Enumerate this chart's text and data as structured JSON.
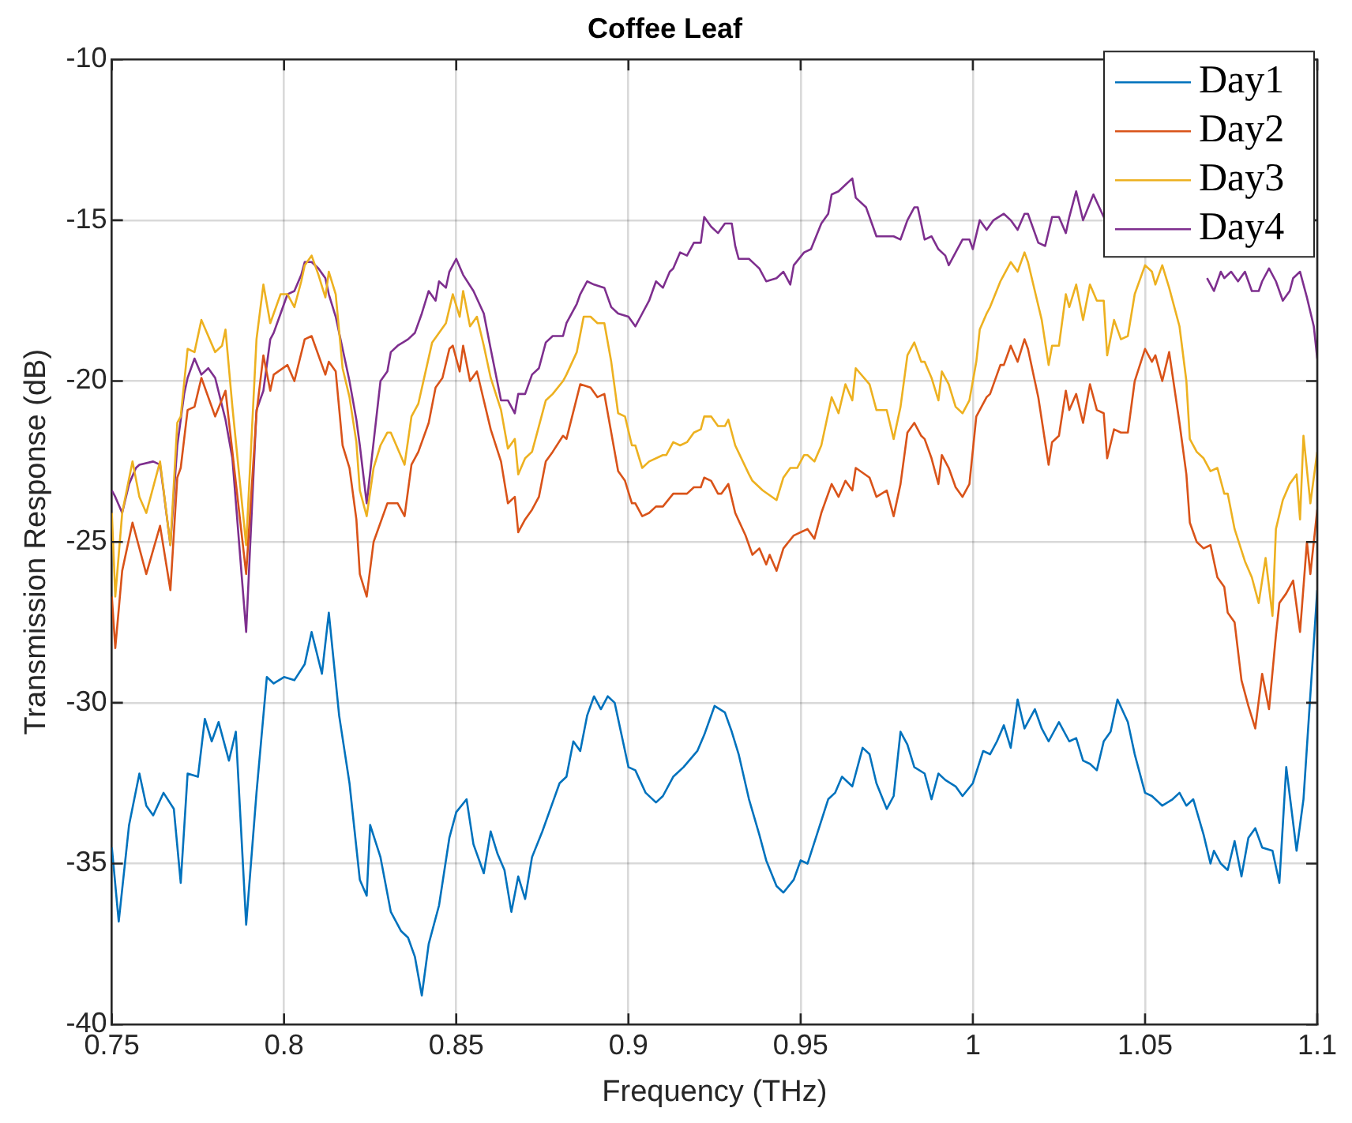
{
  "chart_data": {
    "type": "line",
    "title": "Coffee Leaf",
    "xlabel": "Frequency (THz)",
    "ylabel": "Transmission Response (dB)",
    "xlim": [
      0.75,
      1.1
    ],
    "xticks": [
      0.75,
      0.8,
      0.85,
      0.9,
      0.95,
      1,
      1.05,
      1.1
    ],
    "ylim": [
      -40,
      -10
    ],
    "yticks": [
      -40,
      -35,
      -30,
      -25,
      -20,
      -15,
      -10
    ],
    "grid": true,
    "legend": "top right",
    "marker": "none",
    "line_style": "solid",
    "series": [
      {
        "name": "Day1",
        "color": "#0072bd",
        "x": [
          0.75,
          0.752,
          0.755,
          0.758,
          0.76,
          0.762,
          0.765,
          0.768,
          0.77,
          0.772,
          0.775,
          0.777,
          0.779,
          0.781,
          0.784,
          0.786,
          0.789,
          0.792,
          0.795,
          0.797,
          0.8,
          0.803,
          0.806,
          0.808,
          0.811,
          0.813,
          0.816,
          0.819,
          0.822,
          0.824,
          0.825,
          0.828,
          0.831,
          0.834,
          0.836,
          0.838,
          0.84,
          0.842,
          0.845,
          0.848,
          0.85,
          0.853,
          0.855,
          0.858,
          0.86,
          0.862,
          0.864,
          0.866,
          0.868,
          0.87,
          0.872,
          0.875,
          0.878,
          0.88,
          0.882,
          0.884,
          0.886,
          0.888,
          0.89,
          0.892,
          0.894,
          0.896,
          0.9,
          0.902,
          0.905,
          0.908,
          0.91,
          0.913,
          0.916,
          0.92,
          0.922,
          0.925,
          0.928,
          0.93,
          0.932,
          0.935,
          0.938,
          0.94,
          0.943,
          0.945,
          0.948,
          0.95,
          0.952,
          0.955,
          0.958,
          0.96,
          0.962,
          0.965,
          0.968,
          0.97,
          0.972,
          0.975,
          0.977,
          0.979,
          0.981,
          0.983,
          0.986,
          0.988,
          0.99,
          0.992,
          0.995,
          0.997,
          1,
          1.003,
          1.005,
          1.007,
          1.009,
          1.011,
          1.013,
          1.015,
          1.018,
          1.02,
          1.022,
          1.025,
          1.028,
          1.03,
          1.032,
          1.034,
          1.036,
          1.038,
          1.04,
          1.042,
          1.045,
          1.047,
          1.05,
          1.052,
          1.055,
          1.058,
          1.06,
          1.062,
          1.064,
          1.067,
          1.069,
          1.07,
          1.072,
          1.074,
          1.076,
          1.078,
          1.08,
          1.082,
          1.084,
          1.087,
          1.089,
          1.091,
          1.094,
          1.096,
          1.1
        ],
        "values": [
          -34.5,
          -36.8,
          -33.8,
          -32.2,
          -33.2,
          -33.5,
          -32.8,
          -33.3,
          -35.6,
          -32.2,
          -32.3,
          -30.5,
          -31.2,
          -30.6,
          -31.8,
          -30.9,
          -36.9,
          -32.8,
          -29.2,
          -29.4,
          -29.2,
          -29.3,
          -28.8,
          -27.8,
          -29.1,
          -27.2,
          -30.4,
          -32.5,
          -35.5,
          -36,
          -33.8,
          -34.8,
          -36.5,
          -37.1,
          -37.3,
          -37.9,
          -39.1,
          -37.5,
          -36.3,
          -34.2,
          -33.4,
          -33,
          -34.4,
          -35.3,
          -34,
          -34.7,
          -35.2,
          -36.5,
          -35.4,
          -36.1,
          -34.8,
          -34,
          -33.1,
          -32.5,
          -32.3,
          -31.2,
          -31.5,
          -30.4,
          -29.8,
          -30.2,
          -29.8,
          -30,
          -32,
          -32.1,
          -32.8,
          -33.1,
          -32.9,
          -32.3,
          -32,
          -31.5,
          -31,
          -30.1,
          -30.3,
          -30.9,
          -31.6,
          -33,
          -34.1,
          -34.9,
          -35.7,
          -35.9,
          -35.5,
          -34.9,
          -35,
          -34,
          -33,
          -32.8,
          -32.3,
          -32.6,
          -31.4,
          -31.6,
          -32.5,
          -33.3,
          -32.9,
          -30.9,
          -31.3,
          -32,
          -32.2,
          -33,
          -32.2,
          -32.4,
          -32.6,
          -32.9,
          -32.5,
          -31.5,
          -31.6,
          -31.2,
          -30.7,
          -31.4,
          -29.9,
          -30.8,
          -30.2,
          -30.8,
          -31.2,
          -30.6,
          -31.2,
          -31.1,
          -31.8,
          -31.9,
          -32.1,
          -31.2,
          -30.9,
          -29.9,
          -30.6,
          -31.6,
          -32.8,
          -32.9,
          -33.2,
          -33,
          -32.8,
          -33.2,
          -33,
          -34.1,
          -35,
          -34.6,
          -35,
          -35.2,
          -34.3,
          -35.4,
          -34.2,
          -33.9,
          -34.5,
          -34.6,
          -35.6,
          -32,
          -34.6,
          -33,
          -26.5
        ]
      },
      {
        "name": "Day2",
        "color": "#d95319",
        "x": [
          0.75,
          0.751,
          0.753,
          0.756,
          0.76,
          0.764,
          0.767,
          0.769,
          0.77,
          0.772,
          0.774,
          0.776,
          0.78,
          0.783,
          0.785,
          0.789,
          0.792,
          0.794,
          0.796,
          0.797,
          0.801,
          0.803,
          0.806,
          0.808,
          0.812,
          0.813,
          0.815,
          0.817,
          0.819,
          0.821,
          0.822,
          0.824,
          0.826,
          0.83,
          0.833,
          0.835,
          0.837,
          0.839,
          0.842,
          0.844,
          0.846,
          0.848,
          0.849,
          0.851,
          0.852,
          0.854,
          0.856,
          0.858,
          0.86,
          0.863,
          0.865,
          0.867,
          0.868,
          0.87,
          0.872,
          0.874,
          0.876,
          0.878,
          0.881,
          0.882,
          0.886,
          0.889,
          0.891,
          0.893,
          0.897,
          0.899,
          0.901,
          0.902,
          0.904,
          0.906,
          0.908,
          0.91,
          0.913,
          0.917,
          0.919,
          0.921,
          0.922,
          0.924,
          0.926,
          0.927,
          0.929,
          0.931,
          0.934,
          0.936,
          0.938,
          0.94,
          0.941,
          0.943,
          0.945,
          0.948,
          0.952,
          0.954,
          0.956,
          0.959,
          0.961,
          0.963,
          0.965,
          0.966,
          0.97,
          0.972,
          0.975,
          0.977,
          0.979,
          0.981,
          0.983,
          0.985,
          0.986,
          0.988,
          0.99,
          0.991,
          0.993,
          0.995,
          0.997,
          0.999,
          1.001,
          1.004,
          1.005,
          1.008,
          1.009,
          1.011,
          1.013,
          1.015,
          1.016,
          1.019,
          1.022,
          1.023,
          1.025,
          1.027,
          1.028,
          1.03,
          1.032,
          1.034,
          1.036,
          1.038,
          1.039,
          1.041,
          1.043,
          1.045,
          1.047,
          1.05,
          1.052,
          1.053,
          1.055,
          1.057,
          1.06,
          1.062,
          1.063,
          1.065,
          1.067,
          1.069,
          1.071,
          1.073,
          1.074,
          1.076,
          1.078,
          1.08,
          1.082,
          1.084,
          1.086,
          1.088,
          1.089,
          1.091,
          1.093,
          1.095,
          1.097,
          1.098,
          1.1
        ],
        "values": [
          -26.7,
          -28.3,
          -25.9,
          -24.4,
          -26,
          -24.5,
          -26.5,
          -23,
          -22.7,
          -20.9,
          -20.8,
          -19.9,
          -21.1,
          -20.3,
          -22.2,
          -26,
          -21,
          -19.2,
          -20.3,
          -19.8,
          -19.5,
          -20,
          -18.7,
          -18.6,
          -19.8,
          -19.4,
          -19.7,
          -22,
          -22.7,
          -24.3,
          -26,
          -26.7,
          -25,
          -23.8,
          -23.8,
          -24.2,
          -22.6,
          -22.2,
          -21.3,
          -20.2,
          -19.9,
          -19,
          -18.9,
          -19.7,
          -18.9,
          -20,
          -19.7,
          -20.6,
          -21.5,
          -22.5,
          -23.8,
          -23.6,
          -24.7,
          -24.3,
          -24,
          -23.6,
          -22.5,
          -22.2,
          -21.7,
          -21.8,
          -20.1,
          -20.2,
          -20.5,
          -20.4,
          -22.8,
          -23.1,
          -23.8,
          -23.8,
          -24.2,
          -24.1,
          -23.9,
          -23.9,
          -23.5,
          -23.5,
          -23.3,
          -23.3,
          -23,
          -23.1,
          -23.5,
          -23.5,
          -23.2,
          -24.1,
          -24.8,
          -25.4,
          -25.2,
          -25.7,
          -25.4,
          -25.9,
          -25.2,
          -24.8,
          -24.6,
          -24.9,
          -24.1,
          -23.2,
          -23.6,
          -23.1,
          -23.4,
          -22.7,
          -23,
          -23.6,
          -23.4,
          -24.2,
          -23.2,
          -21.6,
          -21.3,
          -21.7,
          -21.8,
          -22.4,
          -23.2,
          -22.3,
          -22.7,
          -23.3,
          -23.6,
          -23.2,
          -21.1,
          -20.5,
          -20.4,
          -19.5,
          -19.5,
          -18.9,
          -19.4,
          -18.7,
          -19,
          -20.5,
          -22.6,
          -21.9,
          -21.7,
          -20.3,
          -20.9,
          -20.4,
          -21.3,
          -20.1,
          -20.9,
          -21,
          -22.4,
          -21.5,
          -21.6,
          -21.6,
          -20,
          -19,
          -19.4,
          -19.2,
          -20,
          -19.1,
          -21.3,
          -22.9,
          -24.4,
          -25,
          -25.2,
          -25.1,
          -26.1,
          -26.4,
          -27.2,
          -27.5,
          -29.3,
          -30.1,
          -30.8,
          -29.1,
          -30.2,
          -27.9,
          -26.9,
          -26.6,
          -26.2,
          -27.8,
          -25,
          -26,
          -24
        ]
      },
      {
        "name": "Day3",
        "color": "#edb120",
        "x": [
          0.75,
          0.751,
          0.753,
          0.756,
          0.758,
          0.76,
          0.764,
          0.767,
          0.769,
          0.77,
          0.772,
          0.774,
          0.776,
          0.78,
          0.782,
          0.783,
          0.785,
          0.789,
          0.792,
          0.794,
          0.796,
          0.799,
          0.801,
          0.803,
          0.805,
          0.806,
          0.808,
          0.81,
          0.812,
          0.813,
          0.815,
          0.817,
          0.819,
          0.821,
          0.822,
          0.824,
          0.826,
          0.828,
          0.83,
          0.831,
          0.835,
          0.837,
          0.839,
          0.843,
          0.847,
          0.849,
          0.851,
          0.852,
          0.854,
          0.856,
          0.858,
          0.86,
          0.863,
          0.865,
          0.867,
          0.868,
          0.87,
          0.872,
          0.874,
          0.876,
          0.878,
          0.881,
          0.882,
          0.885,
          0.887,
          0.889,
          0.891,
          0.893,
          0.895,
          0.897,
          0.899,
          0.901,
          0.902,
          0.904,
          0.906,
          0.91,
          0.911,
          0.913,
          0.915,
          0.917,
          0.919,
          0.921,
          0.922,
          0.924,
          0.926,
          0.928,
          0.929,
          0.931,
          0.935,
          0.936,
          0.939,
          0.943,
          0.945,
          0.947,
          0.949,
          0.951,
          0.952,
          0.954,
          0.956,
          0.959,
          0.961,
          0.963,
          0.965,
          0.966,
          0.97,
          0.972,
          0.975,
          0.977,
          0.979,
          0.981,
          0.983,
          0.985,
          0.986,
          0.988,
          0.99,
          0.991,
          0.993,
          0.995,
          0.997,
          0.999,
          1.001,
          1.002,
          1.004,
          1.005,
          1.008,
          1.009,
          1.011,
          1.013,
          1.015,
          1.016,
          1.018,
          1.02,
          1.022,
          1.023,
          1.025,
          1.027,
          1.028,
          1.03,
          1.032,
          1.034,
          1.036,
          1.038,
          1.039,
          1.041,
          1.043,
          1.045,
          1.047,
          1.05,
          1.052,
          1.053,
          1.055,
          1.057,
          1.06,
          1.062,
          1.063,
          1.065,
          1.067,
          1.069,
          1.071,
          1.073,
          1.074,
          1.076,
          1.079,
          1.081,
          1.083,
          1.085,
          1.087,
          1.088,
          1.09,
          1.092,
          1.094,
          1.095,
          1.096,
          1.098,
          1.1
        ],
        "values": [
          -24.1,
          -26.7,
          -24.1,
          -22.5,
          -23.6,
          -24.1,
          -22.5,
          -25.1,
          -21.3,
          -21.1,
          -19,
          -19.1,
          -18.1,
          -19.1,
          -18.9,
          -18.4,
          -20.8,
          -25.1,
          -18.7,
          -17,
          -18.2,
          -17.3,
          -17.3,
          -17.7,
          -16.9,
          -16.4,
          -16.1,
          -16.7,
          -17.4,
          -16.6,
          -17.3,
          -19.6,
          -20.5,
          -21.9,
          -23.4,
          -24.2,
          -22.7,
          -22,
          -21.6,
          -21.6,
          -22.6,
          -21.1,
          -20.7,
          -18.8,
          -18.2,
          -17.3,
          -18,
          -17.2,
          -18.3,
          -18,
          -18.9,
          -19.9,
          -20.9,
          -22.1,
          -21.8,
          -22.9,
          -22.4,
          -22.2,
          -21.4,
          -20.6,
          -20.4,
          -20,
          -19.8,
          -19.1,
          -18,
          -18,
          -18.2,
          -18.2,
          -19.4,
          -21,
          -21.1,
          -22,
          -22,
          -22.7,
          -22.5,
          -22.3,
          -22.3,
          -21.9,
          -22,
          -21.9,
          -21.6,
          -21.5,
          -21.1,
          -21.1,
          -21.4,
          -21.4,
          -21.2,
          -22,
          -22.9,
          -23.1,
          -23.4,
          -23.7,
          -23,
          -22.7,
          -22.7,
          -22.3,
          -22.3,
          -22.5,
          -22,
          -20.5,
          -21,
          -20.1,
          -20.6,
          -19.6,
          -20.1,
          -20.9,
          -20.9,
          -21.8,
          -20.8,
          -19.2,
          -18.8,
          -19.4,
          -19.4,
          -19.9,
          -20.6,
          -19.7,
          -20.1,
          -20.8,
          -21,
          -20.6,
          -19.4,
          -18.4,
          -17.9,
          -17.7,
          -16.9,
          -16.7,
          -16.3,
          -16.6,
          -16,
          -16.3,
          -17.2,
          -18.1,
          -19.5,
          -18.9,
          -18.9,
          -17.3,
          -17.7,
          -17,
          -18.1,
          -17,
          -17.5,
          -17.5,
          -19.2,
          -18.1,
          -18.7,
          -18.6,
          -17.3,
          -16.4,
          -16.6,
          -17,
          -16.4,
          -17.1,
          -18.3,
          -20,
          -21.8,
          -22.2,
          -22.4,
          -22.8,
          -22.7,
          -23.5,
          -23.5,
          -24.6,
          -25.6,
          -26.1,
          -26.9,
          -25.5,
          -27.3,
          -24.6,
          -23.7,
          -23.2,
          -22.9,
          -24.3,
          -21.7,
          -23.8,
          -22.2
        ]
      },
      {
        "name": "Day4",
        "color": "#7e2f8e",
        "x": [
          0.75,
          0.751,
          0.753,
          0.755,
          0.757,
          0.758,
          0.762,
          0.764,
          0.765,
          0.767,
          0.769,
          0.771,
          0.772,
          0.774,
          0.776,
          0.778,
          0.78,
          0.783,
          0.785,
          0.789,
          0.792,
          0.794,
          0.796,
          0.797,
          0.799,
          0.801,
          0.803,
          0.805,
          0.806,
          0.808,
          0.81,
          0.812,
          0.813,
          0.815,
          0.817,
          0.819,
          0.821,
          0.822,
          0.824,
          0.826,
          0.828,
          0.83,
          0.831,
          0.833,
          0.836,
          0.838,
          0.84,
          0.842,
          0.844,
          0.845,
          0.847,
          0.848,
          0.85,
          0.852,
          0.855,
          0.858,
          0.86,
          0.863,
          0.865,
          0.867,
          0.868,
          0.87,
          0.872,
          0.874,
          0.876,
          0.878,
          0.881,
          0.882,
          0.885,
          0.886,
          0.888,
          0.89,
          0.893,
          0.895,
          0.897,
          0.9,
          0.902,
          0.904,
          0.906,
          0.908,
          0.91,
          0.912,
          0.913,
          0.915,
          0.917,
          0.919,
          0.921,
          0.922,
          0.924,
          0.926,
          0.928,
          0.93,
          0.931,
          0.932,
          0.935,
          0.937,
          0.938,
          0.94,
          0.943,
          0.945,
          0.947,
          0.948,
          0.951,
          0.953,
          0.956,
          0.958,
          0.959,
          0.961,
          0.963,
          0.965,
          0.966,
          0.969,
          0.97,
          0.972,
          0.974,
          0.977,
          0.979,
          0.981,
          0.983,
          0.984,
          0.986,
          0.988,
          0.99,
          0.992,
          0.993,
          0.995,
          0.997,
          0.999,
          1,
          1.002,
          1.004,
          1.006,
          1.009,
          1.011,
          1.013,
          1.015,
          1.016,
          1.019,
          1.021,
          1.023,
          1.025,
          1.027,
          1.028,
          1.03,
          1.032,
          1.035,
          1.038,
          1.039,
          1.055,
          1.068,
          1.07,
          1.072,
          1.073,
          1.075,
          1.077,
          1.079,
          1.081,
          1.083,
          1.084,
          1.086,
          1.088,
          1.09,
          1.092,
          1.093,
          1.095,
          1.097,
          1.099,
          1.1
        ],
        "values": [
          -23.4,
          -23.6,
          -24.1,
          -23.2,
          -22.7,
          -22.6,
          -22.5,
          -22.6,
          -23.4,
          -25.1,
          -22,
          -20.4,
          -19.9,
          -19.3,
          -19.8,
          -19.6,
          -19.9,
          -21.2,
          -22.4,
          -27.8,
          -20.9,
          -20.3,
          -18.7,
          -18.5,
          -17.9,
          -17.3,
          -17.2,
          -16.7,
          -16.3,
          -16.3,
          -16.5,
          -16.8,
          -17.3,
          -18,
          -19,
          -20,
          -21.2,
          -22,
          -23.8,
          -21.9,
          -20,
          -19.7,
          -19.1,
          -18.9,
          -18.7,
          -18.5,
          -17.9,
          -17.2,
          -17.5,
          -16.9,
          -17.1,
          -16.6,
          -16.2,
          -16.7,
          -17.2,
          -17.9,
          -19,
          -20.6,
          -20.6,
          -21,
          -20.4,
          -20.4,
          -19.8,
          -19.6,
          -18.8,
          -18.6,
          -18.6,
          -18.2,
          -17.6,
          -17.3,
          -16.9,
          -17,
          -17.1,
          -17.7,
          -17.9,
          -18,
          -18.3,
          -17.9,
          -17.5,
          -16.9,
          -17.1,
          -16.6,
          -16.5,
          -16,
          -16.1,
          -15.7,
          -15.7,
          -14.9,
          -15.2,
          -15.4,
          -15.1,
          -15.1,
          -15.8,
          -16.2,
          -16.2,
          -16.4,
          -16.5,
          -16.9,
          -16.8,
          -16.6,
          -17,
          -16.4,
          -16,
          -15.9,
          -15.1,
          -14.8,
          -14.2,
          -14.1,
          -13.9,
          -13.7,
          -14.3,
          -14.6,
          -14.9,
          -15.5,
          -15.5,
          -15.5,
          -15.6,
          -15,
          -14.6,
          -14.6,
          -15.6,
          -15.5,
          -15.9,
          -16.1,
          -16.4,
          -16,
          -15.6,
          -15.6,
          -15.9,
          -15,
          -15.3,
          -15,
          -14.8,
          -15,
          -15.3,
          -14.8,
          -14.8,
          -15.7,
          -15.8,
          -14.9,
          -14.9,
          -15.4,
          -14.9,
          -14.1,
          -15,
          -14.2,
          -14.9,
          -15,
          null,
          -16.8,
          -17.2,
          -16.6,
          -16.8,
          -16.6,
          -16.9,
          -16.6,
          -17.2,
          -17.2,
          -16.9,
          -16.5,
          -16.9,
          -17.5,
          -17.2,
          -16.8,
          -16.6,
          -17.4,
          -18.3,
          -19.3
        ]
      }
    ]
  }
}
